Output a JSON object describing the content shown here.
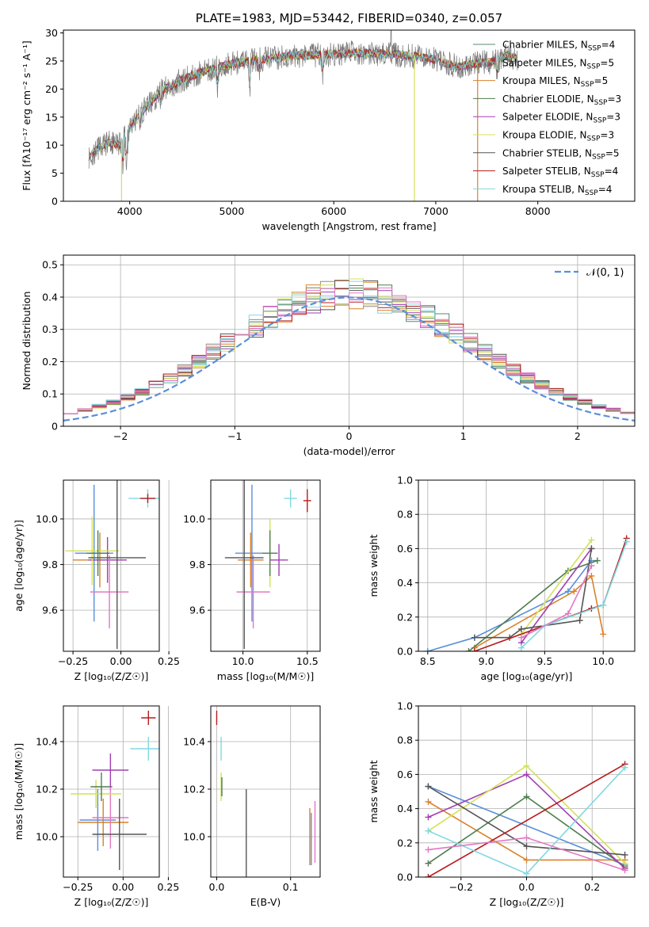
{
  "chart_data": [
    {
      "id": "spectrum",
      "type": "line",
      "title": "PLATE=1983, MJD=53442, FIBERID=0340, z=0.057",
      "xlabel": "wavelength [Angstrom, rest frame]",
      "ylabel": "Flux [fλ10⁻¹⁷ erg cm⁻² s⁻¹ A⁻¹]",
      "xlim": [
        3350,
        8950
      ],
      "ylim": [
        0,
        30.5
      ],
      "xticks": [
        4000,
        5000,
        6000,
        7000,
        8000
      ],
      "yticks": [
        0,
        5,
        10,
        15,
        20,
        25,
        30
      ],
      "grid": false,
      "legend_position": "top-right",
      "legend": [
        {
          "label": "Chabrier MILES, N",
          "sub": "SSP",
          "suffix": "=4",
          "color": "#5b8a6a"
        },
        {
          "label": "Salpeter MILES, N",
          "sub": "SSP",
          "suffix": "=5",
          "color": "#8e8e8e"
        },
        {
          "label": "Kroupa MILES, N",
          "sub": "SSP",
          "suffix": "=5",
          "color": "#d9822b"
        },
        {
          "label": "Chabrier ELODIE, N",
          "sub": "SSP",
          "suffix": "=3",
          "color": "#4e7d4e"
        },
        {
          "label": "Salpeter ELODIE, N",
          "sub": "SSP",
          "suffix": "=3",
          "color": "#a23eb5"
        },
        {
          "label": "Kroupa ELODIE, N",
          "sub": "SSP",
          "suffix": "=3",
          "color": "#d4e157"
        },
        {
          "label": "Chabrier STELIB, N",
          "sub": "SSP",
          "suffix": "=5",
          "color": "#555555"
        },
        {
          "label": "Salpeter STELIB, N",
          "sub": "SSP",
          "suffix": "=4",
          "color": "#b71c1c"
        },
        {
          "label": "Kroupa STELIB, N",
          "sub": "SSP",
          "suffix": "=4",
          "color": "#80d8e0"
        }
      ],
      "continuum": [
        [
          3600,
          8
        ],
        [
          3700,
          9.5
        ],
        [
          3800,
          10.5
        ],
        [
          3900,
          10
        ],
        [
          4000,
          13
        ],
        [
          4100,
          15.5
        ],
        [
          4200,
          17.5
        ],
        [
          4300,
          19.5
        ],
        [
          4400,
          20.5
        ],
        [
          4500,
          21.5
        ],
        [
          4600,
          22.3
        ],
        [
          4800,
          23.5
        ],
        [
          5000,
          24.5
        ],
        [
          5200,
          25
        ],
        [
          5400,
          25.5
        ],
        [
          5600,
          26
        ],
        [
          5800,
          26
        ],
        [
          6000,
          26.2
        ],
        [
          6200,
          26.5
        ],
        [
          6400,
          26.3
        ],
        [
          6600,
          26.2
        ],
        [
          6800,
          25.8
        ],
        [
          7000,
          25.2
        ],
        [
          7200,
          24
        ],
        [
          7400,
          24.5
        ],
        [
          7600,
          25
        ],
        [
          7700,
          26
        ],
        [
          7800,
          25.5
        ],
        [
          8000,
          24
        ],
        [
          8200,
          22.5
        ],
        [
          8400,
          21.5
        ],
        [
          8600,
          20.5
        ],
        [
          8800,
          19.5
        ]
      ],
      "model_cutoffs": [
        [
          3920,
          "#d4e157"
        ],
        [
          6790,
          "#d4e157"
        ],
        [
          7410,
          "#d9822b"
        ]
      ]
    },
    {
      "id": "residuals",
      "type": "bar",
      "xlabel": "(data-model)/error",
      "ylabel": "Normed distribution",
      "xlim": [
        -2.5,
        2.5
      ],
      "ylim": [
        0,
        0.53
      ],
      "xticks": [
        -2,
        -1,
        0,
        1,
        2
      ],
      "yticks": [
        0,
        0.1,
        0.2,
        0.3,
        0.4,
        0.5
      ],
      "grid": true,
      "legend_position": "top-right",
      "legend_label": "𝒩(0, 1)",
      "reference": {
        "mean": 0,
        "sigma": 1,
        "color": "#5b8fd9"
      },
      "bin_width": 0.125,
      "colors": [
        "#5b8a6a",
        "#8e8e8e",
        "#d9822b",
        "#4e7d4e",
        "#a23eb5",
        "#d4e157",
        "#555555",
        "#b71c1c",
        "#80d8e0",
        "#e377c2"
      ]
    },
    {
      "id": "age_vs_Z",
      "type": "scatter",
      "xlabel": "Z [log₁₀(Z/Z☉)]",
      "ylabel": "age  [log₁₀(age/yr)]",
      "xlim": [
        -0.3,
        0.2
      ],
      "ylim": [
        9.42,
        10.17
      ],
      "xticks": [
        -0.25,
        0,
        0.25
      ],
      "xticklabels": [
        "−0.25",
        "0.00",
        "0.25"
      ],
      "yticks": [
        9.6,
        9.8,
        10.0
      ],
      "yticklabels": [
        "9.6",
        "9.8",
        "10.0"
      ],
      "grid": true,
      "points": [
        {
          "x": -0.14,
          "y": 9.85,
          "xerr": 0.1,
          "yerr": 0.3,
          "color": "#5b8fd9"
        },
        {
          "x": -0.11,
          "y": 9.82,
          "xerr": 0.14,
          "yerr": 0.12,
          "color": "#d9822b"
        },
        {
          "x": -0.07,
          "y": 9.82,
          "xerr": 0.1,
          "yerr": 0.1,
          "color": "#a23eb5"
        },
        {
          "x": -0.15,
          "y": 9.86,
          "xerr": 0.14,
          "yerr": 0.15,
          "color": "#d4e157"
        },
        {
          "x": -0.12,
          "y": 9.85,
          "xerr": 0.06,
          "yerr": 0.1,
          "color": "#4e7d4e"
        },
        {
          "x": -0.06,
          "y": 9.68,
          "xerr": 0.1,
          "yerr": 0.16,
          "color": "#e377c2"
        },
        {
          "x": -0.02,
          "y": 9.83,
          "xerr": 0.15,
          "yerr": 0.4,
          "color": "#555555"
        },
        {
          "x": 0.14,
          "y": 10.09,
          "xerr": 0.1,
          "yerr": 0.04,
          "color": "#80d8e0"
        },
        {
          "x": 0.14,
          "y": 10.09,
          "xerr": 0.04,
          "yerr": 0.02,
          "color": "#b71c1c"
        }
      ]
    },
    {
      "id": "age_vs_mass",
      "type": "scatter",
      "xlabel": "mass [log₁₀(M/M☉)]",
      "ylabel": "",
      "xlim": [
        9.75,
        10.6
      ],
      "ylim": [
        9.42,
        10.17
      ],
      "xticks": [
        10.0,
        10.5
      ],
      "xticklabels": [
        "10.0",
        "10.5"
      ],
      "yticks": [
        9.6,
        9.8,
        10.0
      ],
      "yticklabels": [
        "9.6",
        "9.8",
        "10.0"
      ],
      "grid": true,
      "points": [
        {
          "x": 10.07,
          "y": 9.85,
          "xerr": 0.13,
          "yerr": 0.3,
          "color": "#5b8fd9"
        },
        {
          "x": 10.06,
          "y": 9.82,
          "xerr": 0.1,
          "yerr": 0.12,
          "color": "#d9822b"
        },
        {
          "x": 10.08,
          "y": 9.68,
          "xerr": 0.13,
          "yerr": 0.16,
          "color": "#e377c2"
        },
        {
          "x": 10.01,
          "y": 9.83,
          "xerr": 0.15,
          "yerr": 0.4,
          "color": "#555555"
        },
        {
          "x": 10.21,
          "y": 9.85,
          "xerr": 0.06,
          "yerr": 0.15,
          "color": "#d4e157"
        },
        {
          "x": 10.21,
          "y": 9.85,
          "xerr": 0.06,
          "yerr": 0.1,
          "color": "#4e7d4e"
        },
        {
          "x": 10.28,
          "y": 9.82,
          "xerr": 0.07,
          "yerr": 0.07,
          "color": "#a23eb5"
        },
        {
          "x": 10.37,
          "y": 10.09,
          "xerr": 0.05,
          "yerr": 0.04,
          "color": "#80d8e0"
        },
        {
          "x": 10.5,
          "y": 10.08,
          "xerr": 0.03,
          "yerr": 0.05,
          "color": "#b71c1c"
        }
      ]
    },
    {
      "id": "weight_vs_age",
      "type": "line",
      "xlabel": "age  [log₁₀(age/yr)]",
      "ylabel": "mass weight",
      "xlim": [
        8.42,
        10.27
      ],
      "ylim": [
        0,
        1.0
      ],
      "xticks": [
        8.5,
        9.0,
        9.5,
        10.0
      ],
      "xticklabels": [
        "8.5",
        "9.0",
        "9.5",
        "10.0"
      ],
      "yticks": [
        0,
        0.2,
        0.4,
        0.6,
        0.8,
        1.0
      ],
      "yticklabels": [
        "0.0",
        "0.2",
        "0.4",
        "0.6",
        "0.8",
        "1.0"
      ],
      "grid": true,
      "series": [
        {
          "color": "#5b8fd9",
          "points": [
            [
              8.5,
              0.0
            ],
            [
              8.9,
              0.08
            ],
            [
              9.7,
              0.35
            ],
            [
              9.9,
              0.53
            ]
          ]
        },
        {
          "color": "#d9822b",
          "points": [
            [
              8.9,
              0.02
            ],
            [
              9.75,
              0.35
            ],
            [
              9.9,
              0.44
            ],
            [
              10.0,
              0.1
            ]
          ]
        },
        {
          "color": "#4e7d4e",
          "points": [
            [
              8.85,
              0.0
            ],
            [
              9.7,
              0.47
            ],
            [
              9.95,
              0.53
            ]
          ]
        },
        {
          "color": "#a23eb5",
          "points": [
            [
              9.3,
              0.05
            ],
            [
              9.9,
              0.6
            ]
          ]
        },
        {
          "color": "#d4e157",
          "points": [
            [
              9.3,
              0.1
            ],
            [
              9.9,
              0.65
            ]
          ]
        },
        {
          "color": "#555555",
          "points": [
            [
              8.9,
              0.08
            ],
            [
              9.2,
              0.08
            ],
            [
              9.3,
              0.13
            ],
            [
              9.8,
              0.18
            ],
            [
              9.9,
              0.6
            ]
          ]
        },
        {
          "color": "#b71c1c",
          "points": [
            [
              8.9,
              0.0
            ],
            [
              9.9,
              0.25
            ],
            [
              10.0,
              0.27
            ],
            [
              10.2,
              0.66
            ]
          ]
        },
        {
          "color": "#80d8e0",
          "points": [
            [
              9.3,
              0.02
            ],
            [
              9.5,
              0.15
            ],
            [
              10.0,
              0.27
            ],
            [
              10.2,
              0.64
            ]
          ]
        },
        {
          "color": "#e377c2",
          "points": [
            [
              9.3,
              0.08
            ],
            [
              9.7,
              0.22
            ],
            [
              9.9,
              0.5
            ]
          ]
        }
      ]
    },
    {
      "id": "mass_vs_Z",
      "type": "scatter",
      "xlabel": "Z [log₁₀(Z/Z☉)]",
      "ylabel": "mass [log₁₀(M/M☉)]",
      "xlim": [
        -0.33,
        0.2
      ],
      "ylim": [
        9.83,
        10.55
      ],
      "xticks": [
        -0.25,
        0,
        0.25
      ],
      "xticklabels": [
        "−0.25",
        "0.00",
        "0.25"
      ],
      "yticks": [
        10.0,
        10.2,
        10.4
      ],
      "yticklabels": [
        "10.0",
        "10.2",
        "10.4"
      ],
      "grid": true,
      "points": [
        {
          "x": -0.14,
          "y": 10.07,
          "xerr": 0.1,
          "yerr": 0.13,
          "color": "#5b8fd9"
        },
        {
          "x": -0.11,
          "y": 10.06,
          "xerr": 0.14,
          "yerr": 0.1,
          "color": "#d9822b"
        },
        {
          "x": -0.07,
          "y": 10.08,
          "xerr": 0.1,
          "yerr": 0.13,
          "color": "#e377c2"
        },
        {
          "x": -0.02,
          "y": 10.01,
          "xerr": 0.15,
          "yerr": 0.15,
          "color": "#555555"
        },
        {
          "x": -0.15,
          "y": 10.18,
          "xerr": 0.14,
          "yerr": 0.06,
          "color": "#d4e157"
        },
        {
          "x": -0.12,
          "y": 10.21,
          "xerr": 0.06,
          "yerr": 0.06,
          "color": "#4e7d4e"
        },
        {
          "x": -0.07,
          "y": 10.28,
          "xerr": 0.1,
          "yerr": 0.07,
          "color": "#a23eb5"
        },
        {
          "x": 0.14,
          "y": 10.37,
          "xerr": 0.1,
          "yerr": 0.05,
          "color": "#80d8e0"
        },
        {
          "x": 0.14,
          "y": 10.5,
          "xerr": 0.04,
          "yerr": 0.03,
          "color": "#b71c1c"
        }
      ]
    },
    {
      "id": "mass_vs_ebv",
      "type": "scatter",
      "xlabel": "E(B-V)",
      "ylabel": "",
      "xlim": [
        -0.008,
        0.14
      ],
      "ylim": [
        9.83,
        10.55
      ],
      "xticks": [
        0.0,
        0.1
      ],
      "xticklabels": [
        "0.0",
        "0.1"
      ],
      "yticks": [
        10.0,
        10.2,
        10.4
      ],
      "yticklabels": [
        "10.0",
        "10.2",
        "10.4"
      ],
      "grid": true,
      "points": [
        {
          "x": 0.0,
          "y": 10.5,
          "xerr": 0.0005,
          "yerr": 0.03,
          "color": "#b71c1c"
        },
        {
          "x": 0.006,
          "y": 10.37,
          "xerr": 0.0005,
          "yerr": 0.05,
          "color": "#80d8e0"
        },
        {
          "x": 0.006,
          "y": 10.21,
          "xerr": 0.0005,
          "yerr": 0.06,
          "color": "#d4e157"
        },
        {
          "x": 0.007,
          "y": 10.21,
          "xerr": 0.0005,
          "yerr": 0.04,
          "color": "#4e7d4e"
        },
        {
          "x": 0.04,
          "y": 10.01,
          "xerr": 0.0005,
          "yerr": 0.19,
          "color": "#555555"
        },
        {
          "x": 0.126,
          "y": 10.0,
          "xerr": 0.0005,
          "yerr": 0.12,
          "color": "#d9822b"
        },
        {
          "x": 0.128,
          "y": 9.99,
          "xerr": 0.0005,
          "yerr": 0.11,
          "color": "#5b8fd9"
        },
        {
          "x": 0.133,
          "y": 10.02,
          "xerr": 0.0005,
          "yerr": 0.13,
          "color": "#e377c2"
        }
      ]
    },
    {
      "id": "weight_vs_Z",
      "type": "line",
      "xlabel": "Z [log₁₀(Z/Z☉)]",
      "ylabel": "mass weight",
      "xlim": [
        -0.33,
        0.33
      ],
      "ylim": [
        0,
        1.0
      ],
      "xticks": [
        -0.2,
        0.0,
        0.2
      ],
      "xticklabels": [
        "−0.2",
        "0.0",
        "0.2"
      ],
      "yticks": [
        0,
        0.2,
        0.4,
        0.6,
        0.8,
        1.0
      ],
      "yticklabels": [
        "0.0",
        "0.2",
        "0.4",
        "0.6",
        "0.8",
        "1.0"
      ],
      "grid": true,
      "series": [
        {
          "color": "#5b8fd9",
          "points": [
            [
              -0.3,
              0.53
            ],
            [
              0.3,
              0.07
            ]
          ]
        },
        {
          "color": "#d9822b",
          "points": [
            [
              -0.3,
              0.44
            ],
            [
              0.0,
              0.1
            ],
            [
              0.3,
              0.1
            ]
          ]
        },
        {
          "color": "#4e7d4e",
          "points": [
            [
              -0.3,
              0.08
            ],
            [
              0.0,
              0.47
            ],
            [
              0.3,
              0.06
            ]
          ]
        },
        {
          "color": "#a23eb5",
          "points": [
            [
              -0.3,
              0.35
            ],
            [
              0.0,
              0.6
            ],
            [
              0.3,
              0.05
            ]
          ]
        },
        {
          "color": "#d4e157",
          "points": [
            [
              -0.3,
              0.27
            ],
            [
              0.0,
              0.65
            ],
            [
              0.3,
              0.08
            ]
          ]
        },
        {
          "color": "#555555",
          "points": [
            [
              -0.3,
              0.53
            ],
            [
              0.0,
              0.18
            ],
            [
              0.3,
              0.13
            ]
          ]
        },
        {
          "color": "#b71c1c",
          "points": [
            [
              -0.3,
              0.0
            ],
            [
              0.3,
              0.66
            ]
          ]
        },
        {
          "color": "#80d8e0",
          "points": [
            [
              -0.3,
              0.27
            ],
            [
              0.0,
              0.02
            ],
            [
              0.3,
              0.64
            ]
          ]
        },
        {
          "color": "#e377c2",
          "points": [
            [
              -0.3,
              0.16
            ],
            [
              0.0,
              0.23
            ],
            [
              0.3,
              0.04
            ]
          ]
        }
      ]
    }
  ]
}
